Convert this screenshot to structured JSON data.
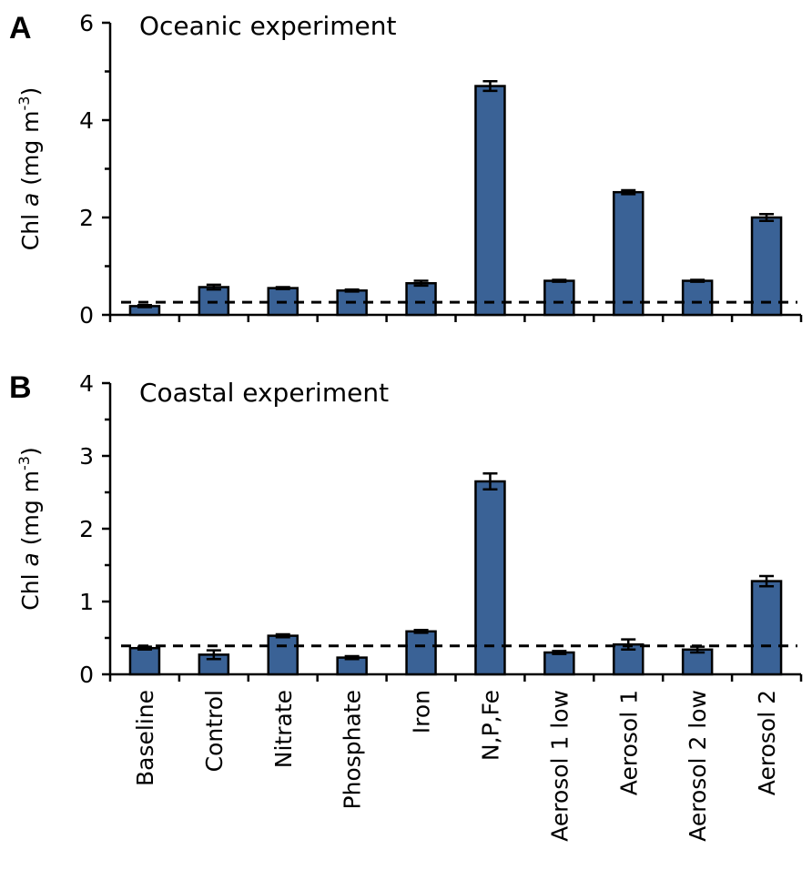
{
  "chart_data": [
    {
      "type": "bar",
      "panel": "A",
      "title": "Oceanic experiment",
      "ylabel_prefix": "Chl ",
      "ylabel_italic": "a",
      "ylabel_unit": " (mg m",
      "ylabel_sup": "-3",
      "ylabel_close": ")",
      "ylim": [
        0,
        6
      ],
      "yticks": [
        0,
        2,
        4,
        6
      ],
      "yminor": [
        1,
        3,
        5
      ],
      "categories": [
        "Baseline",
        "Control",
        "Nitrate",
        "Phosphate",
        "Iron",
        "N,P,Fe",
        "Aerosol 1 low",
        "Aerosol 1",
        "Aerosol 2 low",
        "Aerosol 2"
      ],
      "values": [
        0.18,
        0.57,
        0.55,
        0.5,
        0.65,
        4.7,
        0.7,
        2.52,
        0.7,
        2.0
      ],
      "errors": [
        0.02,
        0.05,
        0.02,
        0.02,
        0.05,
        0.1,
        0.02,
        0.04,
        0.02,
        0.07
      ],
      "reference_line": 0.26
    },
    {
      "type": "bar",
      "panel": "B",
      "title": "Coastal experiment",
      "ylabel_prefix": "Chl ",
      "ylabel_italic": "a",
      "ylabel_unit": " (mg m",
      "ylabel_sup": "-3",
      "ylabel_close": ")",
      "ylim": [
        0,
        4
      ],
      "yticks": [
        0,
        1,
        2,
        3,
        4
      ],
      "yminor": [
        0.5,
        1.5,
        2.5,
        3.5
      ],
      "categories": [
        "Baseline",
        "Control",
        "Nitrate",
        "Phosphate",
        "Iron",
        "N,P,Fe",
        "Aerosol 1 low",
        "Aerosol 1",
        "Aerosol 2 low",
        "Aerosol 2"
      ],
      "values": [
        0.36,
        0.27,
        0.53,
        0.23,
        0.59,
        2.65,
        0.3,
        0.41,
        0.34,
        1.28
      ],
      "errors": [
        0.02,
        0.06,
        0.02,
        0.02,
        0.02,
        0.11,
        0.02,
        0.07,
        0.04,
        0.07
      ],
      "reference_line": 0.39
    }
  ]
}
